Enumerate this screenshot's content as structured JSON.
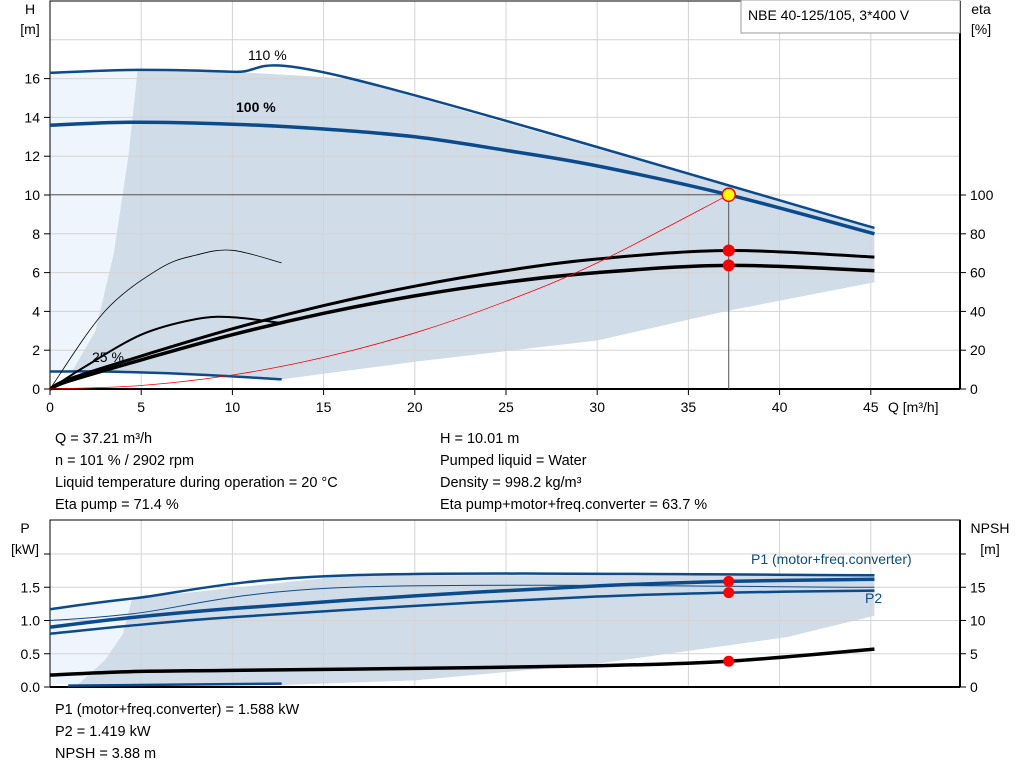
{
  "chart_data": [
    {
      "type": "line",
      "title": "NBE 40-125/105, 3*400 V",
      "xlabel": "Q [m³/h]",
      "ylabel_left": [
        "H",
        "[m]"
      ],
      "ylabel_right": [
        "eta",
        "[%]"
      ],
      "xlim": [
        0,
        50
      ],
      "ylim_left": [
        0,
        18
      ],
      "ylim_right": [
        0,
        100
      ],
      "x_ticks": [
        0,
        5,
        10,
        15,
        20,
        25,
        30,
        35,
        40,
        45
      ],
      "y_ticks_left": [
        0,
        2,
        4,
        6,
        8,
        10,
        12,
        14,
        16
      ],
      "y_ticks_right": [
        0,
        20,
        40,
        60,
        80,
        100
      ],
      "grid": true,
      "annotations": [
        "110 %",
        "100 %",
        "25 %"
      ],
      "colors": {
        "curve": "#0b4a8b",
        "area": "#d0dce8",
        "area_light": "#eef5fc",
        "eta": "#000000",
        "system": "#ff0000",
        "point": "#ff0000",
        "duty": "#ffff00"
      },
      "series": [
        {
          "axis": "H",
          "label": "110 %",
          "x": [
            0,
            4.8,
            10,
            16.5,
            45.2
          ],
          "y": [
            16.3,
            16.45,
            16.35,
            16.0,
            8.3
          ]
        },
        {
          "axis": "H",
          "label": "100 %",
          "x": [
            0,
            4.5,
            10,
            15,
            20,
            25,
            30,
            37.21,
            45.2
          ],
          "y": [
            13.6,
            13.75,
            13.65,
            13.4,
            13.0,
            12.3,
            11.5,
            10.01,
            8.0
          ]
        },
        {
          "axis": "H",
          "label": "25 %",
          "x": [
            0,
            3,
            8,
            12.7
          ],
          "y": [
            0.9,
            0.9,
            0.75,
            0.5
          ]
        },
        {
          "axis": "eta",
          "x": [
            0,
            1,
            5,
            10,
            15,
            20,
            25,
            30,
            37.21,
            45.2
          ],
          "y": [
            0,
            5,
            17,
            31,
            43,
            53,
            61,
            67,
            71.4,
            68
          ]
        },
        {
          "axis": "eta",
          "x": [
            0,
            1,
            5,
            10,
            15,
            20,
            25,
            30,
            37.21,
            45.2
          ],
          "y": [
            0,
            4,
            15,
            28,
            39,
            48,
            55,
            60,
            63.7,
            61
          ]
        },
        {
          "axis": "eta",
          "x": [
            0,
            2,
            5,
            8,
            10,
            12.7
          ],
          "y": [
            0,
            12,
            28,
            36,
            37,
            34
          ]
        },
        {
          "axis": "eta",
          "x": [
            0,
            3,
            6,
            8,
            10,
            12.7
          ],
          "y": [
            0,
            40,
            62,
            69,
            71.5,
            65
          ]
        },
        {
          "axis": "H",
          "label": "system",
          "x": [
            0,
            5,
            10,
            15,
            20,
            25,
            30,
            37.21
          ],
          "y": [
            0,
            0.18,
            0.72,
            1.63,
            2.89,
            4.52,
            6.5,
            10.01
          ]
        }
      ],
      "operating_point": {
        "Q": 37.21,
        "H": 10.01,
        "eta_pump": 71.4,
        "eta_total": 63.7
      }
    },
    {
      "type": "line",
      "xlabel": "",
      "ylabel_left": [
        "P",
        "[kW]"
      ],
      "ylabel_right": [
        "NPSH",
        "[m]"
      ],
      "xlim": [
        0,
        50
      ],
      "ylim_left": [
        0,
        2.0
      ],
      "ylim_right": [
        0,
        20
      ],
      "y_ticks_left": [
        "0.0",
        "0.5",
        "1.0",
        "1.5"
      ],
      "y_ticks_right": [
        0,
        5,
        10,
        15
      ],
      "grid": true,
      "series": [
        {
          "axis": "P",
          "name": "P1 (motor+freq.converter)",
          "x": [
            0,
            4.3,
            10,
            20,
            30,
            37.21,
            45.2
          ],
          "y": [
            0.9,
            1.04,
            1.18,
            1.37,
            1.52,
            1.588,
            1.62
          ]
        },
        {
          "axis": "P",
          "name": "P2",
          "x": [
            0,
            4.3,
            10,
            20,
            30,
            37.21,
            45.2
          ],
          "y": [
            0.8,
            0.92,
            1.05,
            1.22,
            1.36,
            1.419,
            1.45
          ]
        },
        {
          "axis": "P",
          "x": [
            0,
            4.5,
            16.5,
            45.2
          ],
          "y": [
            1.17,
            1.33,
            1.68,
            1.68
          ]
        },
        {
          "axis": "P",
          "x": [
            0,
            4.5,
            16.5,
            45.2
          ],
          "y": [
            1.0,
            1.1,
            1.5,
            1.5
          ]
        },
        {
          "axis": "P",
          "x": [
            1,
            12.7
          ],
          "y": [
            0.02,
            0.05
          ]
        },
        {
          "axis": "NPSH",
          "name": "NPSH",
          "x": [
            0,
            4.3,
            10,
            20,
            30,
            37.21,
            45.2
          ],
          "y": [
            1.8,
            2.3,
            2.5,
            2.8,
            3.2,
            3.88,
            5.7
          ]
        }
      ],
      "operating_point": {
        "Q": 37.21,
        "P1": 1.588,
        "P2": 1.419,
        "NPSH": 3.88
      }
    }
  ],
  "info_top": {
    "left": [
      "Q = 37.21 m³/h",
      "n = 101 % / 2902 rpm",
      "Liquid temperature during operation = 20 °C",
      "Eta pump = 71.4 %"
    ],
    "right": [
      "H = 10.01 m",
      "Pumped liquid = Water",
      "Density = 998.2 kg/m³",
      "Eta pump+motor+freq.converter = 63.7 %"
    ]
  },
  "info_bottom": [
    "P1 (motor+freq.converter) = 1.588 kW",
    "P2 = 1.419 kW",
    "NPSH = 3.88 m"
  ]
}
